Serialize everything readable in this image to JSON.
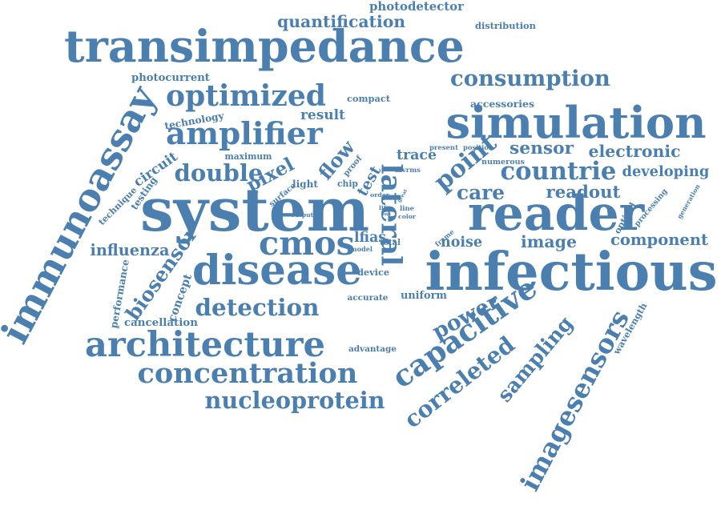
{
  "word_color": "#4a7fb0",
  "words": [
    {
      "text": "transimpedance",
      "rank": 1
    },
    {
      "text": "system",
      "rank": 1
    },
    {
      "text": "lateral",
      "rank": 1
    },
    {
      "text": "reader",
      "rank": 1
    },
    {
      "text": "infectious",
      "rank": 1
    },
    {
      "text": "simulation",
      "rank": 2
    },
    {
      "text": "disease",
      "rank": 2
    },
    {
      "text": "immunoassay",
      "rank": 2
    },
    {
      "text": "imagesensors",
      "rank": 2
    },
    {
      "text": "amplifier",
      "rank": 2
    },
    {
      "text": "consumption",
      "rank": 3
    },
    {
      "text": "optimized",
      "rank": 3
    },
    {
      "text": "cmos",
      "rank": 2
    },
    {
      "text": "architecture",
      "rank": 2
    },
    {
      "text": "detection",
      "rank": 2
    },
    {
      "text": "capacitive",
      "rank": 2
    },
    {
      "text": "concentration",
      "rank": 2
    },
    {
      "text": "nucleoprotein",
      "rank": 3
    },
    {
      "text": "correleted",
      "rank": 3
    },
    {
      "text": "sampling",
      "rank": 3
    },
    {
      "text": "flow",
      "rank": 3
    },
    {
      "text": "point",
      "rank": 3
    },
    {
      "text": "quantification",
      "rank": 3
    },
    {
      "text": "double",
      "rank": 3
    },
    {
      "text": "countrie",
      "rank": 3
    },
    {
      "text": "biosensor",
      "rank": 3
    },
    {
      "text": "power",
      "rank": 3
    },
    {
      "text": "care",
      "rank": 3
    },
    {
      "text": "pixel",
      "rank": 4
    },
    {
      "text": "result",
      "rank": 4
    },
    {
      "text": "sensor",
      "rank": 4
    },
    {
      "text": "electronic",
      "rank": 4
    },
    {
      "text": "developing",
      "rank": 4
    },
    {
      "text": "readout",
      "rank": 4
    },
    {
      "text": "component",
      "rank": 4
    },
    {
      "text": "image",
      "rank": 4
    },
    {
      "text": "influenza",
      "rank": 4
    },
    {
      "text": "noise",
      "rank": 4
    },
    {
      "text": "trace",
      "rank": 4
    },
    {
      "text": "test",
      "rank": 4
    },
    {
      "text": "distribution",
      "rank": 5
    },
    {
      "text": "photodetector",
      "rank": 5
    },
    {
      "text": "photocurrent",
      "rank": 5
    },
    {
      "text": "accessories",
      "rank": 5
    },
    {
      "text": "compact",
      "rank": 5
    },
    {
      "text": "circuit",
      "rank": 5
    },
    {
      "text": "technology",
      "rank": 5
    },
    {
      "text": "maximum",
      "rank": 5
    },
    {
      "text": "cancellation",
      "rank": 5
    },
    {
      "text": "uniform",
      "rank": 5
    },
    {
      "text": "accurate",
      "rank": 5
    },
    {
      "text": "advantage",
      "rank": 5
    },
    {
      "text": "device",
      "rank": 5
    },
    {
      "text": "lfias",
      "rank": 5
    },
    {
      "text": "wavelength",
      "rank": 5
    },
    {
      "text": "light",
      "rank": 5
    },
    {
      "text": "chip",
      "rank": 5
    },
    {
      "text": "generation",
      "rank": 5
    },
    {
      "text": "processing",
      "rank": 5
    },
    {
      "text": "optical",
      "rank": 5
    },
    {
      "text": "concept",
      "rank": 5
    },
    {
      "text": "performance",
      "rank": 5
    },
    {
      "text": "technique",
      "rank": 5
    },
    {
      "text": "testing",
      "rank": 5
    },
    {
      "text": "numerous",
      "rank": 5
    },
    {
      "text": "present",
      "rank": 6
    },
    {
      "text": "position",
      "rank": 6
    },
    {
      "text": "total",
      "rank": 6
    },
    {
      "text": "model",
      "rank": 6
    },
    {
      "text": "output",
      "rank": 6
    },
    {
      "text": "surface",
      "rank": 6
    },
    {
      "text": "proof",
      "rank": 6
    },
    {
      "text": "mvrms",
      "rank": 6
    },
    {
      "text": "order",
      "rank": 6
    },
    {
      "text": "line",
      "rank": 6
    },
    {
      "text": "color",
      "rank": 6
    },
    {
      "text": "frame",
      "rank": 6
    },
    {
      "text": "great",
      "rank": 6
    },
    {
      "text": "life",
      "rank": 6
    },
    {
      "text": "one",
      "rank": 6
    }
  ]
}
